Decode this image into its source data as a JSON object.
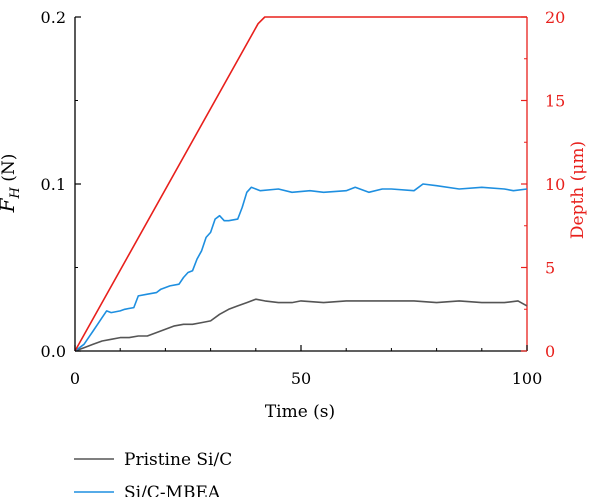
{
  "chart_data": {
    "type": "line",
    "xlabel": "Time (s)",
    "ylabel_left": {
      "symbol": "F",
      "subscript": "H",
      "unit": " (N)"
    },
    "ylabel_right": "Depth (μm)",
    "xlim": [
      0,
      100
    ],
    "ylim_left": [
      0,
      0.2
    ],
    "ylim_right": [
      0,
      20
    ],
    "x_ticks": [
      0,
      50,
      100
    ],
    "y_ticks_left": [
      0.0,
      0.1,
      0.2
    ],
    "y_ticks_left_labels": [
      "0.0",
      "0.1",
      "0.2"
    ],
    "y_ticks_right": [
      0,
      5,
      10,
      15,
      20
    ],
    "grid": false,
    "legend_position": "bottom-left",
    "colors": {
      "pristine": "#555555",
      "mbea": "#1e8fe0",
      "depth": "#e8201c",
      "axis_right": "#e8201c"
    },
    "series": [
      {
        "name": "Pristine Si/C",
        "axis": "left",
        "x": [
          0,
          2,
          4,
          6,
          8,
          10,
          12,
          14,
          16,
          18,
          20,
          22,
          24,
          26,
          28,
          30,
          32,
          34,
          36,
          38,
          40,
          42,
          45,
          48,
          50,
          55,
          60,
          65,
          70,
          75,
          80,
          85,
          90,
          95,
          98,
          100
        ],
        "values": [
          0.0,
          0.002,
          0.004,
          0.006,
          0.007,
          0.008,
          0.008,
          0.009,
          0.009,
          0.011,
          0.013,
          0.015,
          0.016,
          0.016,
          0.017,
          0.018,
          0.022,
          0.025,
          0.027,
          0.029,
          0.031,
          0.03,
          0.029,
          0.029,
          0.03,
          0.029,
          0.03,
          0.03,
          0.03,
          0.03,
          0.029,
          0.03,
          0.029,
          0.029,
          0.03,
          0.027
        ]
      },
      {
        "name": "Si/C-MBEA",
        "axis": "left",
        "x": [
          0,
          1,
          2,
          3,
          4,
          5,
          6,
          7,
          8,
          10,
          11,
          13,
          14,
          16,
          18,
          19,
          21,
          23,
          24,
          25,
          26,
          27,
          28,
          29,
          30,
          31,
          32,
          33,
          34,
          36,
          37,
          38,
          39,
          40,
          41,
          45,
          48,
          52,
          55,
          60,
          62,
          65,
          68,
          70,
          75,
          77,
          80,
          85,
          90,
          95,
          97,
          100
        ],
        "values": [
          0.0,
          0.002,
          0.004,
          0.008,
          0.012,
          0.016,
          0.02,
          0.024,
          0.023,
          0.024,
          0.025,
          0.026,
          0.033,
          0.034,
          0.035,
          0.037,
          0.039,
          0.04,
          0.044,
          0.047,
          0.048,
          0.055,
          0.06,
          0.068,
          0.071,
          0.079,
          0.081,
          0.078,
          0.078,
          0.079,
          0.086,
          0.095,
          0.098,
          0.097,
          0.096,
          0.097,
          0.095,
          0.096,
          0.095,
          0.096,
          0.098,
          0.095,
          0.097,
          0.097,
          0.096,
          0.1,
          0.099,
          0.097,
          0.098,
          0.097,
          0.096,
          0.097
        ]
      },
      {
        "name": "Depth",
        "axis": "right",
        "x": [
          0,
          40.5,
          42,
          100
        ],
        "values": [
          0,
          19.6,
          20,
          20
        ]
      }
    ]
  }
}
